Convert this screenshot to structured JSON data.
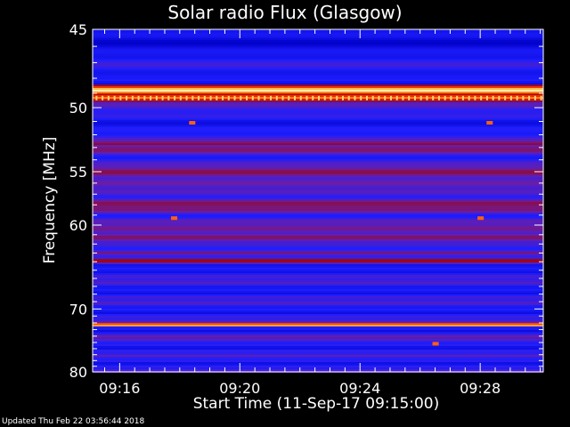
{
  "chart_data": {
    "type": "heatmap",
    "title": "Solar radio Flux (Glasgow)",
    "xlabel": "Start Time (11-Sep-17 09:15:00)",
    "ylabel": "Frequency [MHz]",
    "x_ticks": [
      "09:16",
      "09:20",
      "09:24",
      "09:28"
    ],
    "x_tick_minutes": [
      16,
      20,
      24,
      28
    ],
    "xlim_minutes": [
      15.1,
      30.1
    ],
    "y_ticks": [
      45,
      50,
      55,
      60,
      70,
      80
    ],
    "ylim": [
      45,
      80
    ],
    "y_scale": "reciprocal",
    "colormap": [
      "#000028",
      "#0000c8",
      "#1e1eff",
      "#6a1ea8",
      "#a00000",
      "#ff4000",
      "#ffc040",
      "#ffffe0"
    ],
    "features": [
      {
        "freq": 48.8,
        "level": 1.0
      },
      {
        "freq": 49.3,
        "level": 0.8
      },
      {
        "freq": 52.7,
        "level": 0.55
      },
      {
        "freq": 63.9,
        "level": 0.65
      },
      {
        "freq": 72.3,
        "level": 0.95
      },
      {
        "freq": 74.1,
        "level": 0.5
      }
    ]
  },
  "footer": {
    "updated": "Updated Thu Feb 22 03:56:44 2018"
  }
}
